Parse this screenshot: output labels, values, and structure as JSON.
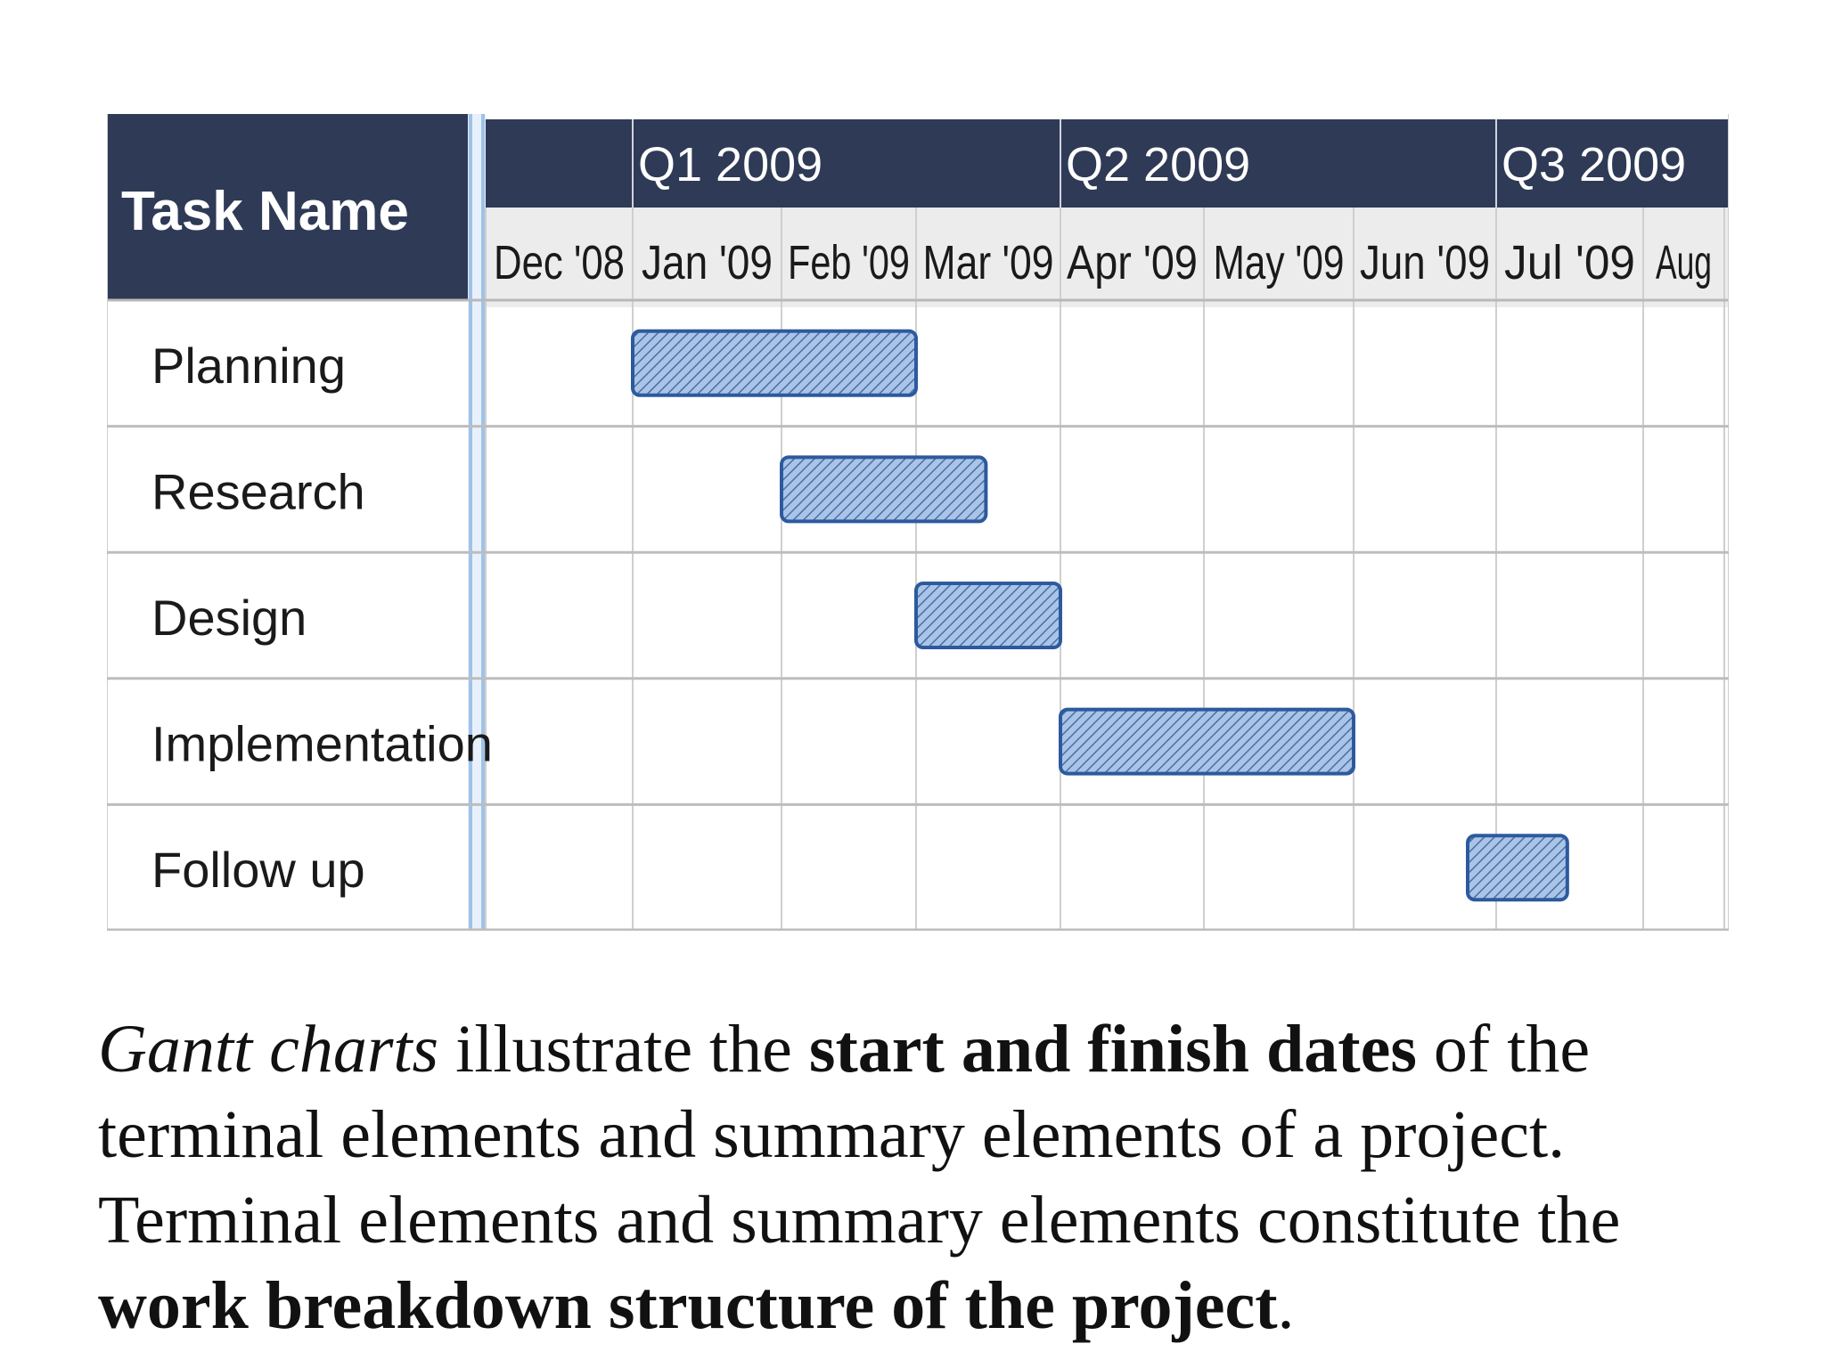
{
  "chart_data": {
    "type": "gantt",
    "task_header": "Task Name",
    "quarters": [
      {
        "label": "Q1 2009",
        "start_month": "2009-01"
      },
      {
        "label": "Q2 2009",
        "start_month": "2009-04"
      },
      {
        "label": "Q3 2009",
        "start_month": "2009-07"
      }
    ],
    "months": [
      "Dec '08",
      "Jan '09",
      "Feb '09",
      "Mar '09",
      "Apr '09",
      "May '09",
      "Jun '09",
      "Jul '09",
      "Aug"
    ],
    "tasks": [
      {
        "name": "Planning",
        "start": "2009-01-01",
        "end": "2009-02-28"
      },
      {
        "name": "Research",
        "start": "2009-02-01",
        "end": "2009-03-15"
      },
      {
        "name": "Design",
        "start": "2009-03-01",
        "end": "2009-03-31"
      },
      {
        "name": "Implementation",
        "start": "2009-04-01",
        "end": "2009-05-31"
      },
      {
        "name": "Follow up",
        "start": "2009-06-25",
        "end": "2009-07-15"
      }
    ],
    "colors": {
      "header_dark": "#2f3a56",
      "header_light": "#ececec",
      "grid": "#cfcfcf",
      "bar_fill": "#a9c4e6",
      "bar_hatch": "#4a6fa5",
      "bar_border": "#2d5a9e",
      "divider": "#9fc3e8"
    }
  },
  "caption": {
    "part1": "Gantt charts",
    "part2": " illustrate the ",
    "part3": "start and finish dates",
    "part4": " of the terminal elements and summary elements of a project. Terminal elements and summary elements constitute the ",
    "part5": "work breakdown structure of the project",
    "part6": "."
  }
}
